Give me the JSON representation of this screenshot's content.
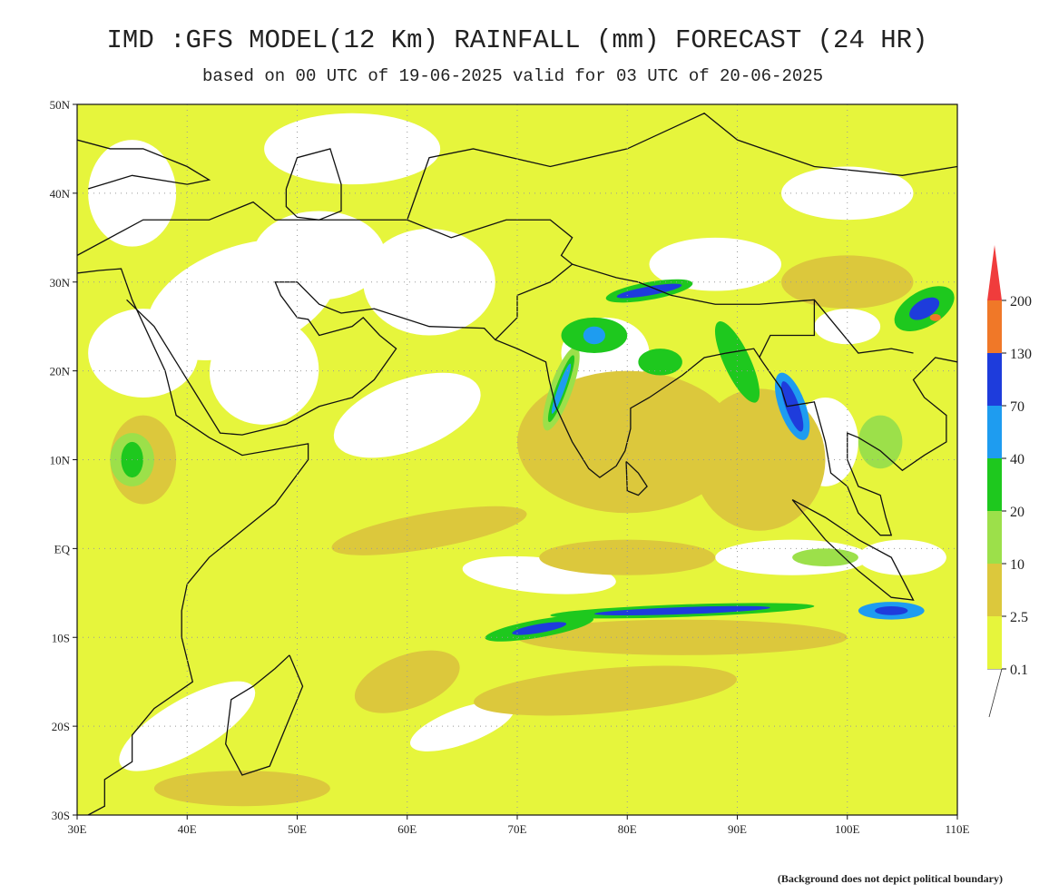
{
  "header": {
    "title": "IMD :GFS MODEL(12 Km) RAINFALL (mm) FORECAST (24 HR)",
    "subtitle": "based on 00 UTC of 19-06-2025 valid for 03 UTC of 20-06-2025"
  },
  "map": {
    "lon_ticks": [
      {
        "value": 30,
        "label": "30E"
      },
      {
        "value": 40,
        "label": "40E"
      },
      {
        "value": 50,
        "label": "50E"
      },
      {
        "value": 60,
        "label": "60E"
      },
      {
        "value": 70,
        "label": "70E"
      },
      {
        "value": 80,
        "label": "80E"
      },
      {
        "value": 90,
        "label": "90E"
      },
      {
        "value": 100,
        "label": "100E"
      },
      {
        "value": 110,
        "label": "110E"
      }
    ],
    "lat_ticks": [
      {
        "value": 50,
        "label": "50N"
      },
      {
        "value": 40,
        "label": "40N"
      },
      {
        "value": 30,
        "label": "30N"
      },
      {
        "value": 20,
        "label": "20N"
      },
      {
        "value": 10,
        "label": "10N"
      },
      {
        "value": 0,
        "label": "EQ"
      },
      {
        "value": -10,
        "label": "10S"
      },
      {
        "value": -20,
        "label": "20S"
      },
      {
        "value": -30,
        "label": "30S"
      }
    ]
  },
  "legend": {
    "levels": [
      "0.1",
      "2.5",
      "10",
      "20",
      "40",
      "70",
      "130",
      "200"
    ],
    "colors": [
      "#ffffff",
      "#e6f53c",
      "#dcc83c",
      "#9ce04a",
      "#1ec81e",
      "#1e9cf0",
      "#1e3cdc",
      "#f07828",
      "#f03c3c"
    ]
  },
  "footnote": "(Background does not depict political boundary)"
}
